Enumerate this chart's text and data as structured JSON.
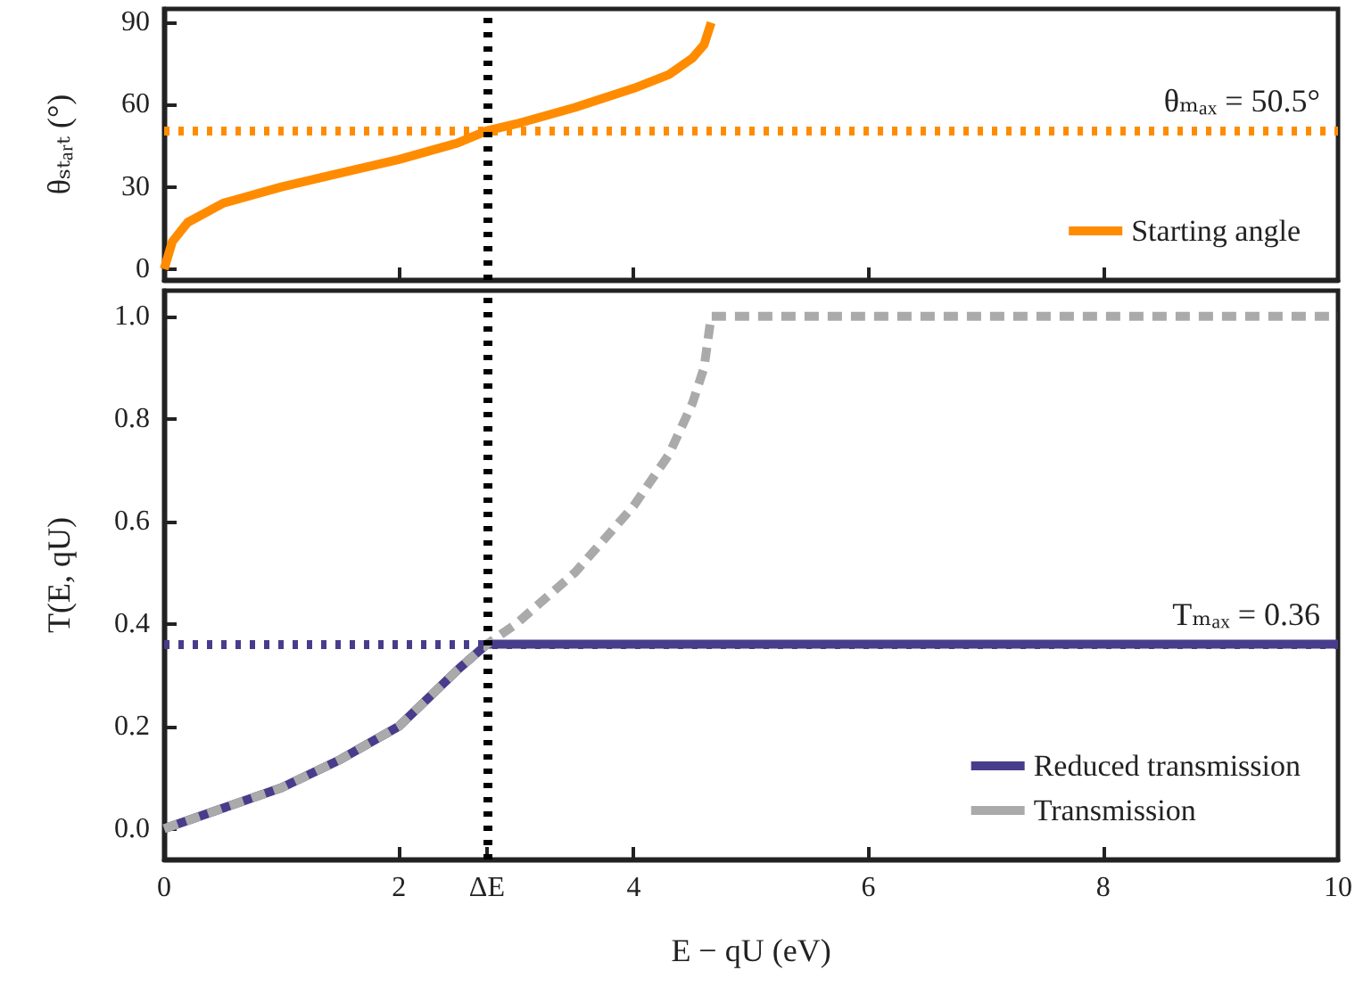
{
  "chart_data": [
    {
      "type": "line",
      "ylabel": "θₛₜₐᵣₜ (°)",
      "x": [
        0,
        0.07,
        0.2,
        0.5,
        1,
        1.5,
        2,
        2.5,
        2.75,
        3,
        3.5,
        4,
        4.3,
        4.5,
        4.6,
        4.66
      ],
      "series": [
        {
          "name": "Starting angle",
          "color": "#ff8c00",
          "values": [
            0,
            10,
            17,
            24,
            30,
            35,
            40,
            46,
            50.5,
            53,
            59,
            66,
            71,
            77,
            82,
            90
          ]
        }
      ],
      "xlim": [
        0,
        10
      ],
      "xticks": [
        0,
        2,
        4,
        6,
        8,
        10
      ],
      "ylim": [
        -4,
        95
      ],
      "yticks": [
        0,
        30,
        60,
        90
      ],
      "tick_labels": "y",
      "legend": "bottom right",
      "marker": "none",
      "ref_lines": [
        {
          "axis": "y",
          "value": 50.5,
          "label": "θₘₐₓ = 50.5°",
          "color": "#ff8c00",
          "line_style": "dotted"
        },
        {
          "axis": "x",
          "value": 2.75,
          "color": "#000000",
          "line_style": "dotted"
        }
      ]
    },
    {
      "type": "line",
      "xlabel": "E − qU (eV)",
      "ylabel": "T(E, qU)",
      "series": [
        {
          "name": "Reduced transmission",
          "color": "#483d8b",
          "line_style": "solid",
          "x": [
            0,
            0.5,
            1,
            1.5,
            2,
            2.5,
            2.75,
            10
          ],
          "values": [
            0,
            0.04,
            0.08,
            0.135,
            0.2,
            0.31,
            0.36,
            0.36
          ]
        },
        {
          "name": "Transmission",
          "color": "#aaaaaa",
          "line_style": "dashed",
          "x": [
            0,
            0.5,
            1,
            1.5,
            2,
            2.5,
            2.75,
            3,
            3.5,
            4,
            4.3,
            4.5,
            4.6,
            4.66,
            10
          ],
          "values": [
            0,
            0.04,
            0.08,
            0.135,
            0.2,
            0.31,
            0.36,
            0.4,
            0.5,
            0.63,
            0.73,
            0.83,
            0.9,
            1.0,
            1.0
          ]
        }
      ],
      "xlim": [
        0,
        10
      ],
      "xticks": [
        0,
        2,
        {
          "value": 2.75,
          "label": "ΔE"
        },
        4,
        6,
        8,
        10
      ],
      "ylim": [
        -0.06,
        1.05
      ],
      "yticks": [
        {
          "value": 0,
          "label": "0.0"
        },
        0.2,
        0.4,
        0.6,
        0.8,
        {
          "value": 1,
          "label": "1.0"
        }
      ],
      "legend": "bottom right",
      "marker": "none",
      "ref_lines": [
        {
          "axis": "y",
          "value": 0.36,
          "label": "Tₘₐₓ = 0.36",
          "color": "#483d8b",
          "line_style": "dotted"
        },
        {
          "axis": "x",
          "value": 2.75,
          "color": "#000000",
          "line_style": "dotted"
        }
      ]
    }
  ]
}
